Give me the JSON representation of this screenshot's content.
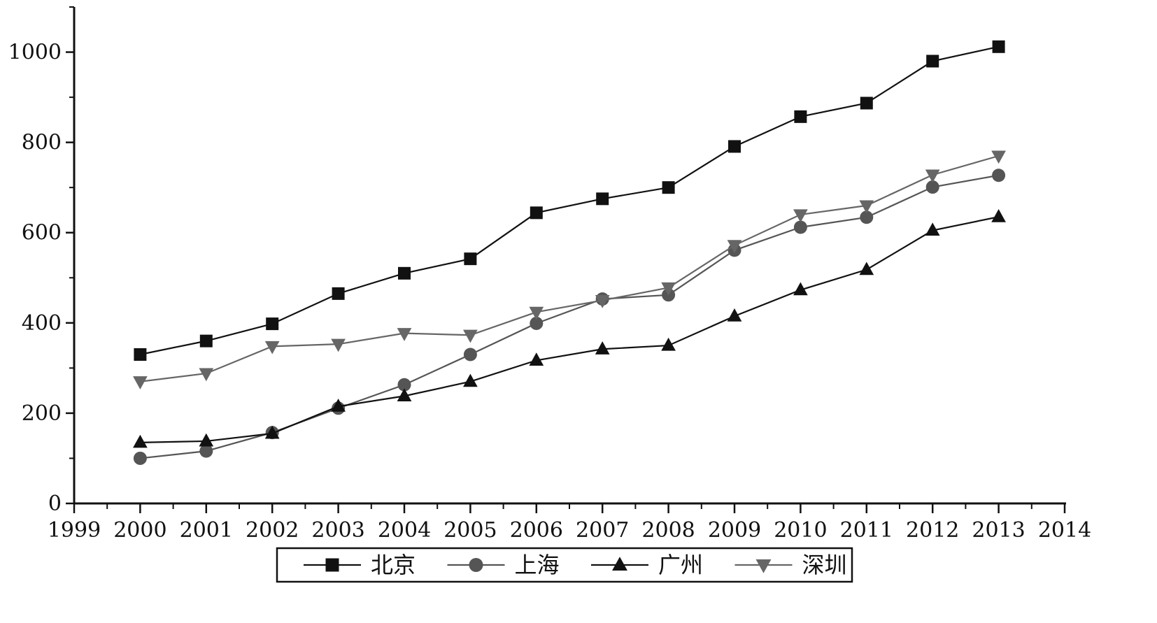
{
  "chart_data": {
    "type": "line",
    "title": "",
    "xlabel": "",
    "ylabel": "",
    "x_ticks": [
      "1999",
      "2000",
      "2001",
      "2002",
      "2003",
      "2004",
      "2005",
      "2006",
      "2007",
      "2008",
      "2009",
      "2010",
      "2011",
      "2012",
      "2013",
      "2014"
    ],
    "y_ticks": [
      "0",
      "200",
      "400",
      "600",
      "800",
      "1000"
    ],
    "xlim": [
      1999,
      2014
    ],
    "ylim": [
      0,
      1100
    ],
    "grid": false,
    "legend_placement": "bottom",
    "x": [
      2000,
      2001,
      2002,
      2003,
      2004,
      2005,
      2006,
      2007,
      2008,
      2009,
      2010,
      2011,
      2012,
      2013
    ],
    "series": [
      {
        "name": "北京",
        "marker": "square",
        "color": "#111111",
        "values": [
          330,
          360,
          398,
          465,
          510,
          542,
          644,
          675,
          700,
          791,
          857,
          887,
          980,
          1012
        ]
      },
      {
        "name": "上海",
        "marker": "circle",
        "color": "#555555",
        "values": [
          100,
          116,
          157,
          211,
          263,
          330,
          399,
          453,
          462,
          561,
          612,
          634,
          701,
          727
        ]
      },
      {
        "name": "广州",
        "marker": "triangle-up",
        "color": "#111111",
        "values": [
          135,
          138,
          155,
          215,
          238,
          270,
          317,
          342,
          350,
          415,
          473,
          518,
          605,
          635
        ]
      },
      {
        "name": "深圳",
        "marker": "triangle-down",
        "color": "#666666",
        "values": [
          270,
          288,
          348,
          353,
          377,
          373,
          424,
          450,
          478,
          572,
          640,
          660,
          728,
          770
        ]
      }
    ]
  }
}
